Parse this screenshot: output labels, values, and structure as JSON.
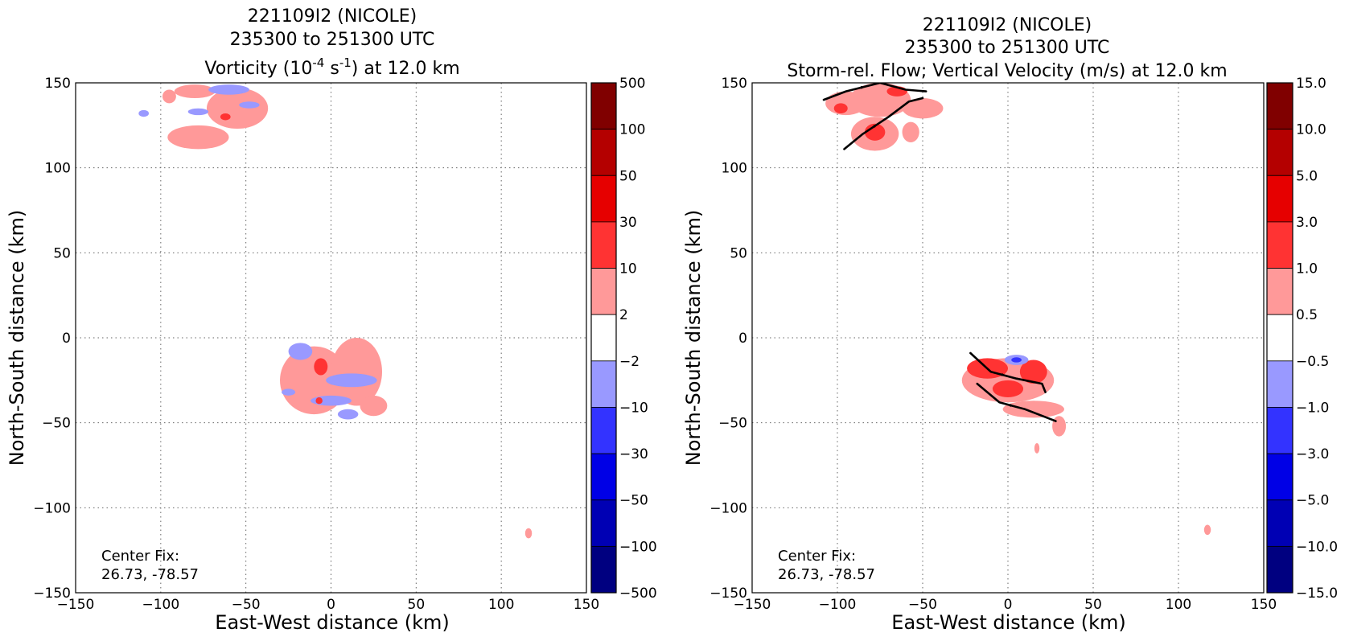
{
  "chart_data": [
    {
      "type": "heatmap",
      "title_lines": [
        "221109I2 (NICOLE)",
        "235300 to 251300 UTC"
      ],
      "title_third": {
        "prefix": "Vorticity (10",
        "sup1": "-4",
        "mid": " s",
        "sup2": "-1",
        "suffix": ") at 12.0 km"
      },
      "xlabel": "East-West distance (km)",
      "ylabel": "North-South distance (km)",
      "xlim": [
        -150,
        150
      ],
      "ylim": [
        -150,
        150
      ],
      "xticks": [
        -150,
        -100,
        -50,
        0,
        50,
        100,
        150
      ],
      "yticks": [
        -150,
        -100,
        -50,
        0,
        50,
        100,
        150
      ],
      "grid": true,
      "annotation": [
        "Center Fix:",
        "26.73, -78.57"
      ],
      "colorbar": {
        "labels": [
          "500",
          "100",
          "50",
          "30",
          "10",
          "2",
          "−2",
          "−10",
          "−30",
          "−50",
          "−100",
          "−500"
        ],
        "colors": [
          "#800000",
          "#b40000",
          "#e60000",
          "#ff3333",
          "#ff9999",
          "#ffffff",
          "#9999ff",
          "#3333ff",
          "#0000e6",
          "#0000b4",
          "#000080"
        ]
      },
      "regions": [
        {
          "level": 1,
          "cx": -78,
          "cy": 118,
          "rx": 18,
          "ry": 7
        },
        {
          "level": 1,
          "cx": -55,
          "cy": 135,
          "rx": 18,
          "ry": 12
        },
        {
          "level": 1,
          "cx": -80,
          "cy": 145,
          "rx": 12,
          "ry": 4
        },
        {
          "level": -1,
          "cx": -60,
          "cy": 146,
          "rx": 12,
          "ry": 3
        },
        {
          "level": -1,
          "cx": -78,
          "cy": 133,
          "rx": 6,
          "ry": 2
        },
        {
          "level": -1,
          "cx": -48,
          "cy": 137,
          "rx": 6,
          "ry": 2
        },
        {
          "level": -1,
          "cx": -110,
          "cy": 132,
          "rx": 3,
          "ry": 2
        },
        {
          "level": 1,
          "cx": -95,
          "cy": 142,
          "rx": 4,
          "ry": 4
        },
        {
          "level": 2,
          "cx": -62,
          "cy": 130,
          "rx": 3,
          "ry": 2
        },
        {
          "level": 1,
          "cx": -10,
          "cy": -25,
          "rx": 20,
          "ry": 20
        },
        {
          "level": 1,
          "cx": 15,
          "cy": -20,
          "rx": 15,
          "ry": 20
        },
        {
          "level": 1,
          "cx": 25,
          "cy": -40,
          "rx": 8,
          "ry": 6
        },
        {
          "level": -1,
          "cx": -18,
          "cy": -8,
          "rx": 7,
          "ry": 5
        },
        {
          "level": -1,
          "cx": 12,
          "cy": -25,
          "rx": 15,
          "ry": 4
        },
        {
          "level": -1,
          "cx": 0,
          "cy": -37,
          "rx": 12,
          "ry": 3
        },
        {
          "level": -1,
          "cx": 10,
          "cy": -45,
          "rx": 6,
          "ry": 3
        },
        {
          "level": -1,
          "cx": -25,
          "cy": -32,
          "rx": 4,
          "ry": 2
        },
        {
          "level": 2,
          "cx": -6,
          "cy": -17,
          "rx": 4,
          "ry": 5
        },
        {
          "level": 2,
          "cx": -7,
          "cy": -37,
          "rx": 2,
          "ry": 2
        },
        {
          "level": 1,
          "cx": 116,
          "cy": -115,
          "rx": 2,
          "ry": 3
        }
      ],
      "streamlines": []
    },
    {
      "type": "heatmap",
      "title_lines": [
        "221109I2 (NICOLE)",
        "235300 to 251300 UTC",
        "Storm-rel. Flow; Vertical Velocity (m/s) at 12.0 km"
      ],
      "xlabel": "East-West distance (km)",
      "ylabel": "North-South distance (km)",
      "xlim": [
        -150,
        150
      ],
      "ylim": [
        -150,
        150
      ],
      "xticks": [
        -150,
        -100,
        -50,
        0,
        50,
        100,
        150
      ],
      "yticks": [
        -150,
        -100,
        -50,
        0,
        50,
        100,
        150
      ],
      "grid": true,
      "annotation": [
        "Center Fix:",
        "26.73, -78.57"
      ],
      "colorbar": {
        "labels": [
          "15.0",
          "10.0",
          "5.0",
          "3.0",
          "1.0",
          "0.5",
          "−0.5",
          "−1.0",
          "−3.0",
          "−5.0",
          "−10.0",
          "−15.0"
        ],
        "colors": [
          "#800000",
          "#b40000",
          "#e60000",
          "#ff3333",
          "#ff9999",
          "#ffffff",
          "#9999ff",
          "#3333ff",
          "#0000e6",
          "#0000b4",
          "#000080"
        ]
      },
      "regions": [
        {
          "level": 1,
          "cx": -95,
          "cy": 138,
          "rx": 12,
          "ry": 7
        },
        {
          "level": 1,
          "cx": -75,
          "cy": 140,
          "rx": 18,
          "ry": 10
        },
        {
          "level": 1,
          "cx": -50,
          "cy": 135,
          "rx": 12,
          "ry": 6
        },
        {
          "level": 1,
          "cx": -78,
          "cy": 120,
          "rx": 14,
          "ry": 10
        },
        {
          "level": 1,
          "cx": -57,
          "cy": 121,
          "rx": 5,
          "ry": 6
        },
        {
          "level": 2,
          "cx": -78,
          "cy": 121,
          "rx": 6,
          "ry": 5
        },
        {
          "level": 2,
          "cx": -98,
          "cy": 135,
          "rx": 4,
          "ry": 3
        },
        {
          "level": 2,
          "cx": -65,
          "cy": 145,
          "rx": 6,
          "ry": 3
        },
        {
          "level": 1,
          "cx": 0,
          "cy": -25,
          "rx": 27,
          "ry": 13
        },
        {
          "level": 1,
          "cx": 15,
          "cy": -42,
          "rx": 18,
          "ry": 5
        },
        {
          "level": 1,
          "cx": 30,
          "cy": -52,
          "rx": 4,
          "ry": 6
        },
        {
          "level": 1,
          "cx": 17,
          "cy": -65,
          "rx": 1.5,
          "ry": 3
        },
        {
          "level": 2,
          "cx": -12,
          "cy": -18,
          "rx": 12,
          "ry": 6
        },
        {
          "level": 2,
          "cx": 15,
          "cy": -20,
          "rx": 8,
          "ry": 7
        },
        {
          "level": 2,
          "cx": 0,
          "cy": -30,
          "rx": 9,
          "ry": 5
        },
        {
          "level": -1,
          "cx": 5,
          "cy": -13,
          "rx": 7,
          "ry": 3
        },
        {
          "level": -2,
          "cx": 5,
          "cy": -13,
          "rx": 3,
          "ry": 1.5
        },
        {
          "level": 1,
          "cx": 117,
          "cy": -113,
          "rx": 2,
          "ry": 3
        }
      ],
      "streamlines": [
        [
          [
            -108,
            140
          ],
          [
            -95,
            145
          ],
          [
            -75,
            150
          ],
          [
            -60,
            146
          ],
          [
            -48,
            145
          ]
        ],
        [
          [
            -96,
            111
          ],
          [
            -85,
            120
          ],
          [
            -70,
            130
          ],
          [
            -58,
            139
          ],
          [
            -50,
            141
          ]
        ],
        [
          [
            -22,
            -9
          ],
          [
            -10,
            -20
          ],
          [
            5,
            -24
          ],
          [
            20,
            -27
          ],
          [
            22,
            -32
          ]
        ],
        [
          [
            -18,
            -27
          ],
          [
            -5,
            -38
          ],
          [
            10,
            -42
          ],
          [
            28,
            -49
          ]
        ]
      ]
    }
  ]
}
